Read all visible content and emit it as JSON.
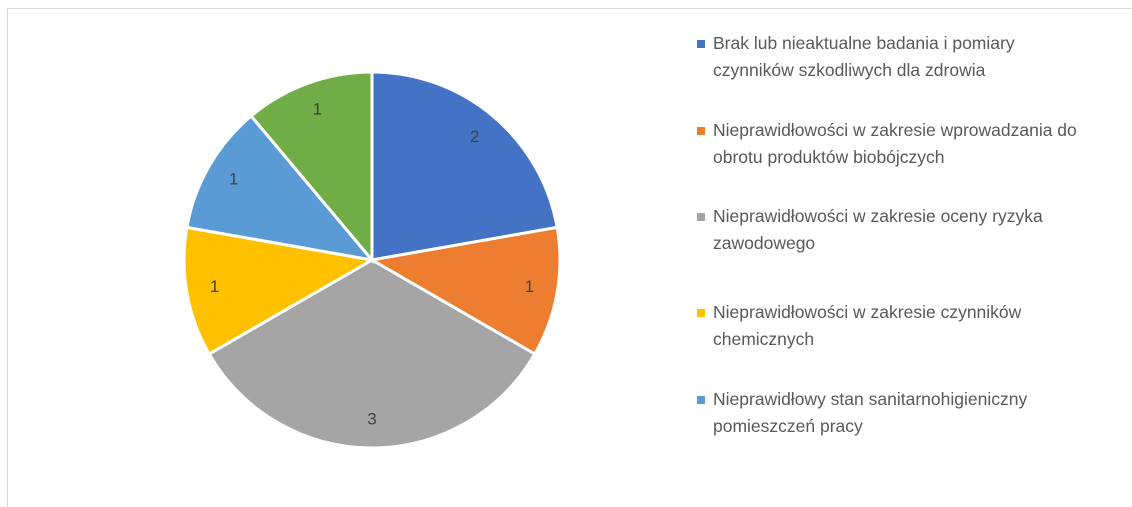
{
  "chart_data": {
    "type": "pie",
    "categories": [
      "Brak lub nieaktualne badania i pomiary czynników szkodliwych dla zdrowia",
      "Nieprawidłowości w zakresie wprowadzania do obrotu produktów biobójczych",
      "Nieprawidłowości w zakresie oceny ryzyka zawodowego",
      "Nieprawidłowości w zakresie czynników chemicznych",
      "Nieprawidłowy stan sanitarnohigieniczny pomieszczeń pracy",
      null
    ],
    "values": [
      2,
      1,
      3,
      1,
      1,
      1
    ],
    "colors": [
      "#4472c4",
      "#ed7d31",
      "#a5a5a5",
      "#ffc000",
      "#5b9bd5",
      "#70ad47"
    ],
    "legend": "right"
  }
}
